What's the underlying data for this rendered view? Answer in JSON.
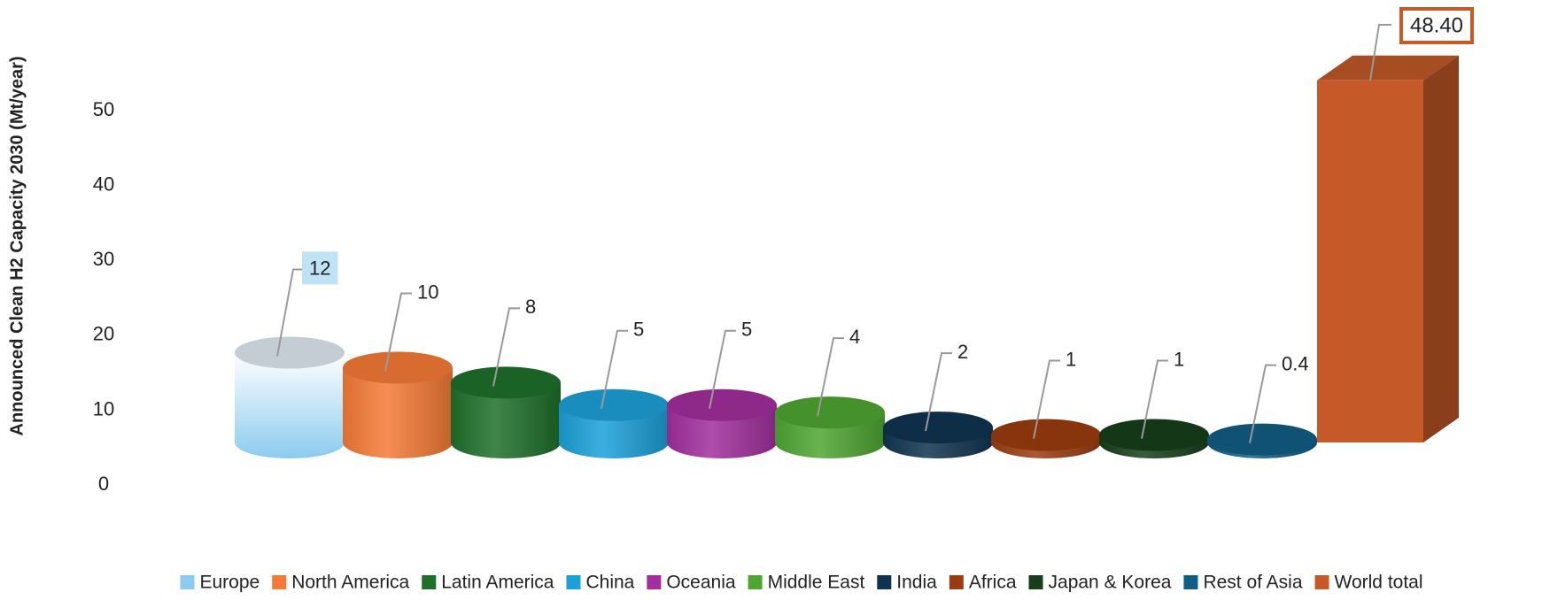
{
  "chart_data": {
    "type": "bar3d",
    "y_label": "Announced Clean H2 Capacity 2030 (Mt/year)",
    "categories": [
      "Europe",
      "North America",
      "Latin America",
      "China",
      "Oceania",
      "Middle East",
      "India",
      "Africa",
      "Japan & Korea",
      "Rest of Asia",
      "World total"
    ],
    "values": [
      12,
      10,
      8,
      5,
      5,
      4,
      2,
      1,
      1,
      0.4,
      48.4
    ],
    "value_labels": [
      "12",
      "10",
      "8",
      "5",
      "5",
      "4",
      "2",
      "1",
      "1",
      "0.4",
      "48.40"
    ],
    "colors": [
      "#8ccbee",
      "#f47a36",
      "#1e6f2a",
      "#1ba0d8",
      "#a12f9d",
      "#4ea532",
      "#0f3450",
      "#9a3c10",
      "#163f1a",
      "#115d84",
      "#c55a28"
    ],
    "ylim": [
      0,
      55
    ],
    "yticks": [
      0,
      10,
      20,
      30,
      40,
      50
    ],
    "grid": false,
    "legend": "bottom"
  }
}
